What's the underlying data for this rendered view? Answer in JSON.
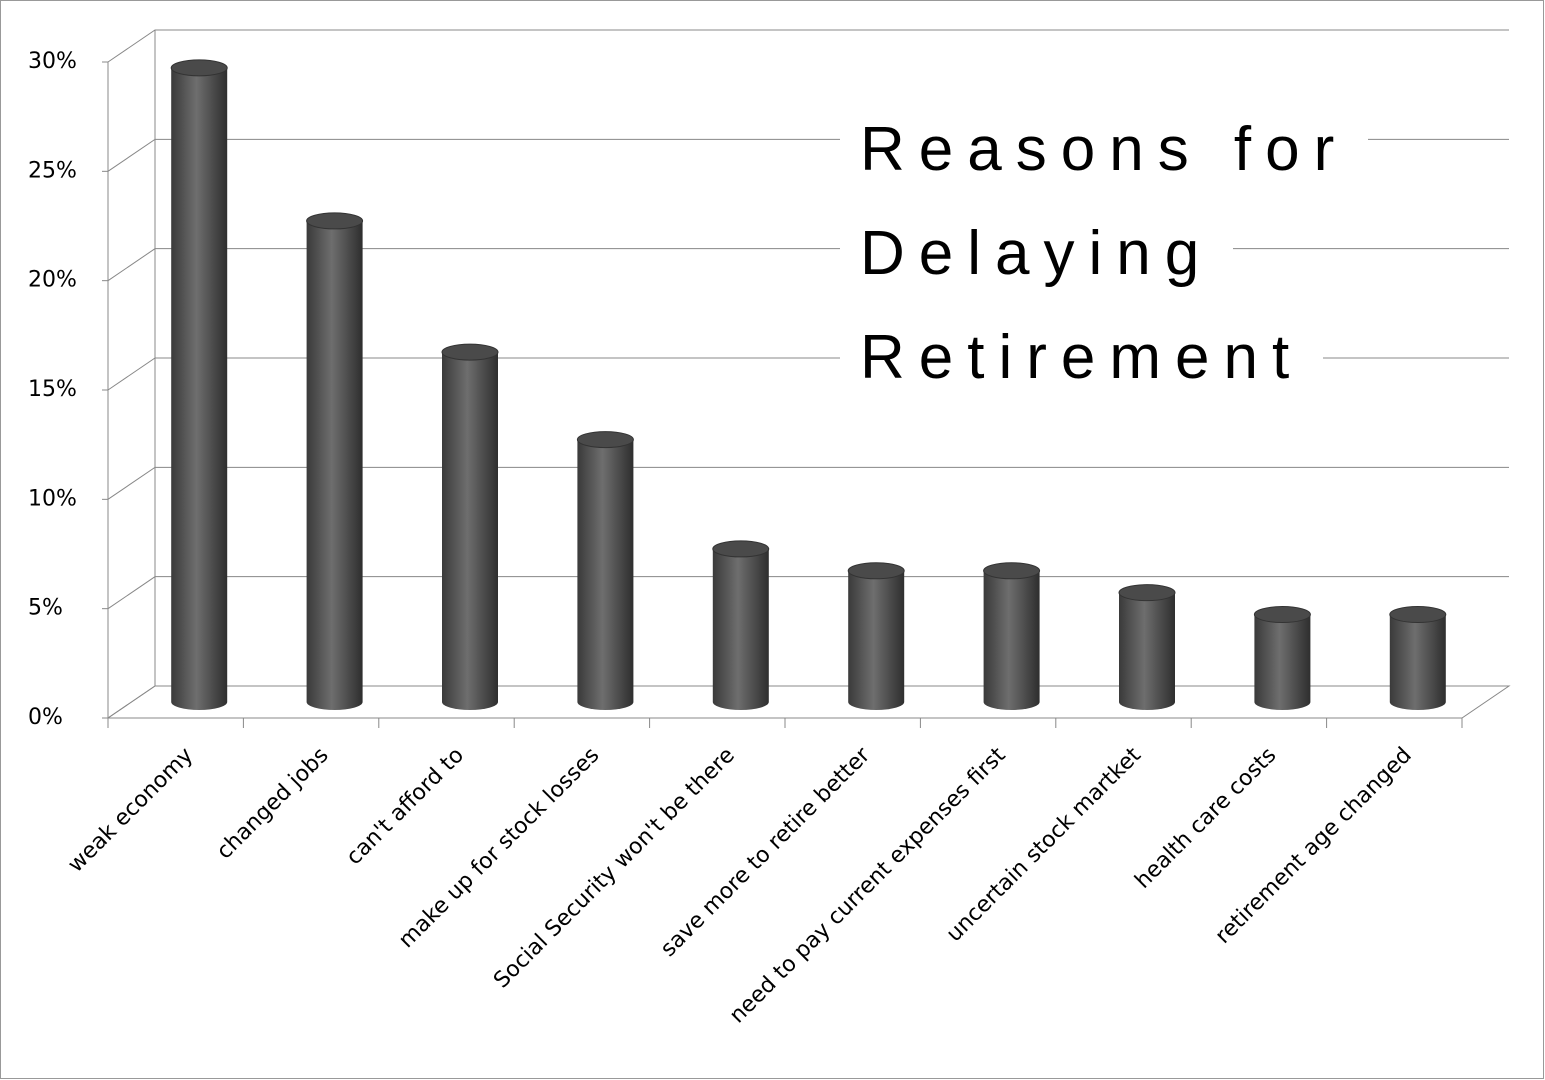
{
  "chart_data": {
    "type": "bar3d",
    "title": "Reasons for Delaying Retirement",
    "categories": [
      "weak economy",
      "changed jobs",
      "can't afford to",
      "make up for stock losses",
      "Social Security won't be there",
      "save more to retire better",
      "need to pay current expenses first",
      "uncertain stock martket",
      "health care costs",
      "retirement age changed"
    ],
    "values": [
      29,
      22,
      16,
      12,
      7,
      6,
      6,
      5,
      4,
      4
    ],
    "color": "#5a5a5a",
    "ylim": [
      0,
      30
    ],
    "yticks": [
      {
        "value": 0,
        "label": "0%"
      },
      {
        "value": 5,
        "label": "5%"
      },
      {
        "value": 10,
        "label": "10%"
      },
      {
        "value": 15,
        "label": "15%"
      },
      {
        "value": 20,
        "label": "20%"
      },
      {
        "value": 25,
        "label": "25%"
      },
      {
        "value": 30,
        "label": "30%"
      }
    ],
    "grid": true
  }
}
